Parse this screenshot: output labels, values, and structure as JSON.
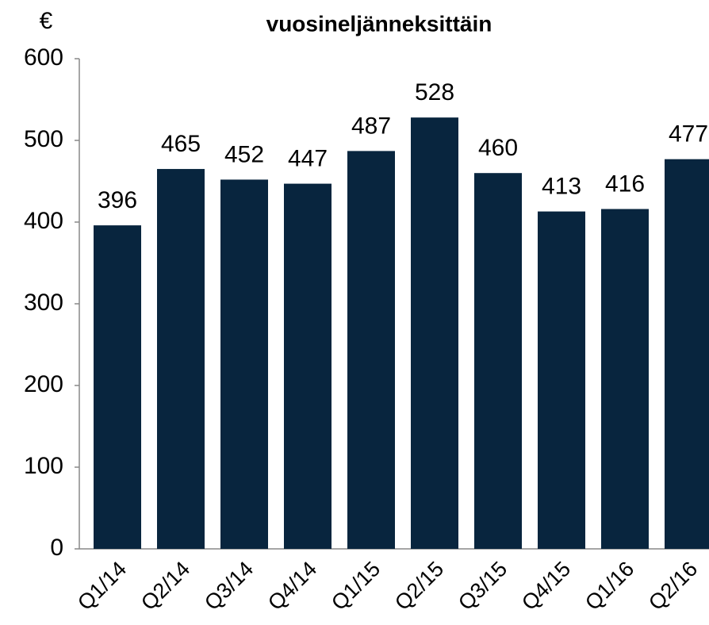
{
  "chart_data": {
    "type": "bar",
    "title": "vuosineljänneksittäin",
    "y_label": "€",
    "categories": [
      "Q1/14",
      "Q2/14",
      "Q3/14",
      "Q4/14",
      "Q1/15",
      "Q2/15",
      "Q3/15",
      "Q4/15",
      "Q1/16",
      "Q2/16"
    ],
    "values": [
      396,
      465,
      452,
      447,
      487,
      528,
      460,
      413,
      416,
      477
    ],
    "color": "#08253e",
    "ylim": [
      0,
      600
    ],
    "yticks": [
      0,
      100,
      200,
      300,
      400,
      500,
      600
    ],
    "grid": false
  }
}
